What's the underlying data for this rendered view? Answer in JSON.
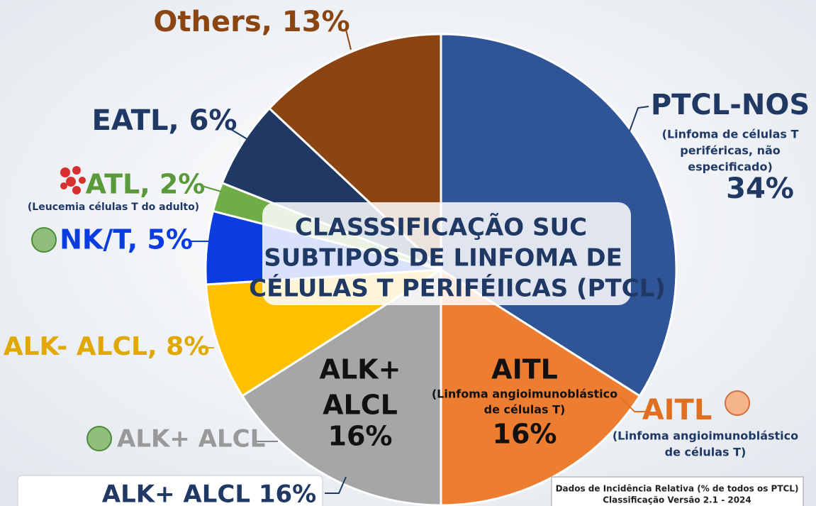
{
  "chart_data": {
    "type": "pie",
    "title": [
      "CLASSSIFICAÇÃO SUC",
      "SUBTIPOS DE LINFOMA DE",
      "CÉLULAS T PERIFÉIICAS (PTCL)"
    ],
    "categories": [
      "PTCL-NOS",
      "AITL",
      "ALK+ ALCL",
      null,
      null,
      null,
      null,
      null
    ],
    "values": [
      34,
      16,
      16,
      8,
      5,
      2,
      6,
      13
    ],
    "value_labels": [
      "34%",
      "16%",
      "16%",
      "ALK- ALCL, 8%",
      "NK/T, 5%",
      "ATL, 2%",
      "EATL, 6%",
      "Others, 13%"
    ],
    "colors": [
      "#2f5597",
      "#ed7d31",
      "#a6a6a6",
      "#ffc000",
      "#0a3ce0",
      "#70ad47",
      "#1f3864",
      "#8b4513"
    ],
    "annotations": [
      {
        "lines": [
          "(Linfoma de células T",
          "periféricas, não",
          "especificado)"
        ]
      },
      {
        "lines": [
          "(Linfoma angioimunoblástico",
          "de células T)"
        ]
      },
      {
        "lines": [
          "AITL"
        ]
      },
      {
        "lines": [
          "(Linfoma angioimunoblástico",
          "de células T)"
        ]
      },
      {
        "lines": [
          "ALK+",
          "ALCL"
        ]
      },
      {
        "lines": [
          "(Leucemia células T do adulto)"
        ]
      },
      {
        "lines": [
          "ALK+ ALCL 16%"
        ]
      },
      {
        "lines": [
          "Dados de Incidência Relativa (% de todos os PTCL)",
          "Classificação Versão 2.1 - 2024"
        ]
      }
    ]
  }
}
